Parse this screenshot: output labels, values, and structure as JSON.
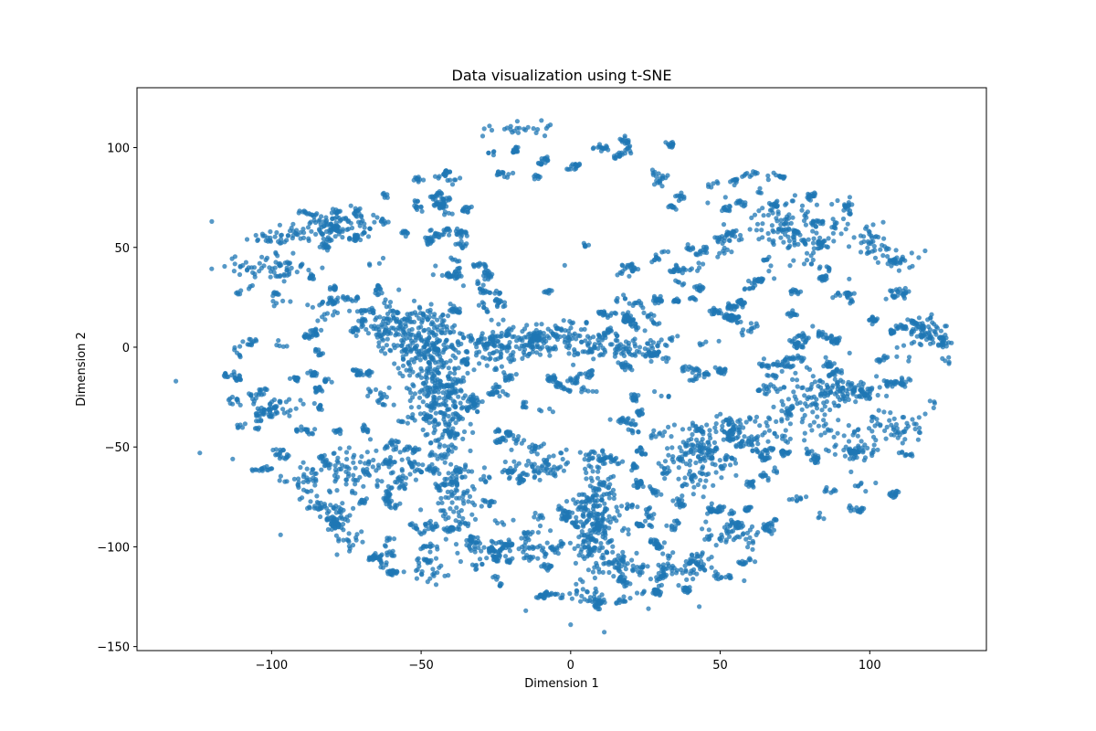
{
  "chart_data": {
    "type": "scatter",
    "title": "Data visualization using t-SNE",
    "xlabel": "Dimension 1",
    "ylabel": "Dimension 2",
    "xlim": [
      -145,
      139
    ],
    "ylim": [
      -152,
      130
    ],
    "xticks": [
      -100,
      -50,
      0,
      50,
      100
    ],
    "xtick_labels": [
      "−100",
      "−50",
      "0",
      "50",
      "100"
    ],
    "yticks": [
      -150,
      -100,
      -50,
      0,
      50,
      100
    ],
    "ytick_labels": [
      "−150",
      "−100",
      "−50",
      "0",
      "50",
      "100"
    ],
    "grid": false,
    "legend": "none",
    "point_color": "#1f77b4",
    "point_alpha": 0.75,
    "clusters": [
      {
        "x": 8,
        "y": -85,
        "sx": 3.5,
        "sy": 16,
        "n": 260
      },
      {
        "x": -48,
        "y": -5,
        "sx": 5,
        "sy": 14,
        "n": 240
      },
      {
        "x": -20,
        "y": 2,
        "sx": 14,
        "sy": 5,
        "n": 230
      },
      {
        "x": 15,
        "y": 0,
        "sx": 8,
        "sy": 3,
        "n": 90
      },
      {
        "x": -42,
        "y": -35,
        "sx": 4,
        "sy": 9,
        "n": 120
      },
      {
        "x": -60,
        "y": 10,
        "sx": 5,
        "sy": 6,
        "n": 110
      },
      {
        "x": 42,
        "y": -55,
        "sx": 6,
        "sy": 8,
        "n": 120
      },
      {
        "x": 75,
        "y": 60,
        "sx": 12,
        "sy": 8,
        "n": 110
      },
      {
        "x": 82,
        "y": -25,
        "sx": 6,
        "sy": 10,
        "n": 100
      },
      {
        "x": 95,
        "y": -22,
        "sx": 6,
        "sy": 3,
        "n": 70
      },
      {
        "x": -80,
        "y": 60,
        "sx": 7,
        "sy": 3,
        "n": 80
      },
      {
        "x": -100,
        "y": 40,
        "sx": 7,
        "sy": 2.5,
        "n": 60
      },
      {
        "x": -68,
        "y": -62,
        "sx": 8,
        "sy": 6,
        "n": 100
      },
      {
        "x": -38,
        "y": -75,
        "sx": 4,
        "sy": 10,
        "n": 80
      },
      {
        "x": -10,
        "y": -60,
        "sx": 6,
        "sy": 4,
        "n": 60
      },
      {
        "x": 118,
        "y": 7,
        "sx": 5,
        "sy": 5,
        "n": 50
      },
      {
        "x": 110,
        "y": -40,
        "sx": 5,
        "sy": 4,
        "n": 40
      },
      {
        "x": 95,
        "y": -50,
        "sx": 4,
        "sy": 5,
        "n": 50
      },
      {
        "x": 55,
        "y": -95,
        "sx": 5,
        "sy": 4,
        "n": 40
      },
      {
        "x": 35,
        "y": -112,
        "sx": 6,
        "sy": 2.5,
        "n": 40
      },
      {
        "x": 17,
        "y": -110,
        "sx": 3,
        "sy": 5,
        "n": 30
      },
      {
        "x": -18,
        "y": 110,
        "sx": 6,
        "sy": 2,
        "n": 25
      },
      {
        "x": -88,
        "y": -68,
        "sx": 2.5,
        "sy": 5,
        "n": 35
      },
      {
        "x": -78,
        "y": -85,
        "sx": 3,
        "sy": 4,
        "n": 30
      },
      {
        "x": -100,
        "y": -30,
        "sx": 6,
        "sy": 2,
        "n": 40
      },
      {
        "x": -98,
        "y": 55,
        "sx": 5,
        "sy": 2,
        "n": 35
      },
      {
        "x": 60,
        "y": -40,
        "sx": 8,
        "sy": 4,
        "n": 60
      },
      {
        "x": 100,
        "y": 55,
        "sx": 3,
        "sy": 5,
        "n": 30
      },
      {
        "x": 110,
        "y": 45,
        "sx": 4,
        "sy": 3,
        "n": 25
      },
      {
        "x": -12,
        "y": -100,
        "sx": 3,
        "sy": 5,
        "n": 30
      },
      {
        "x": -30,
        "y": -100,
        "sx": 5,
        "sy": 3,
        "n": 30
      },
      {
        "x": -48,
        "y": -112,
        "sx": 4,
        "sy": 4,
        "n": 25
      },
      {
        "x": 5,
        "y": -125,
        "sx": 3,
        "sy": 2,
        "n": 15
      },
      {
        "x": 5,
        "y": 51,
        "sx": 0.6,
        "sy": 0.8,
        "n": 6
      },
      {
        "x": -75,
        "y": -95,
        "sx": 3,
        "sy": 3,
        "n": 20
      }
    ],
    "outliers": [
      {
        "x": -120,
        "y": 63
      },
      {
        "x": -97,
        "y": -94
      },
      {
        "x": 43,
        "y": -130
      },
      {
        "x": 0,
        "y": -139
      },
      {
        "x": -2,
        "y": 41
      },
      {
        "x": -113,
        "y": -56
      },
      {
        "x": -124,
        "y": -53
      },
      {
        "x": -15,
        "y": -132
      },
      {
        "x": 26,
        "y": -131
      },
      {
        "x": 58,
        "y": -117
      },
      {
        "x": 102,
        "y": -68
      },
      {
        "x": -132,
        "y": -17
      }
    ]
  }
}
